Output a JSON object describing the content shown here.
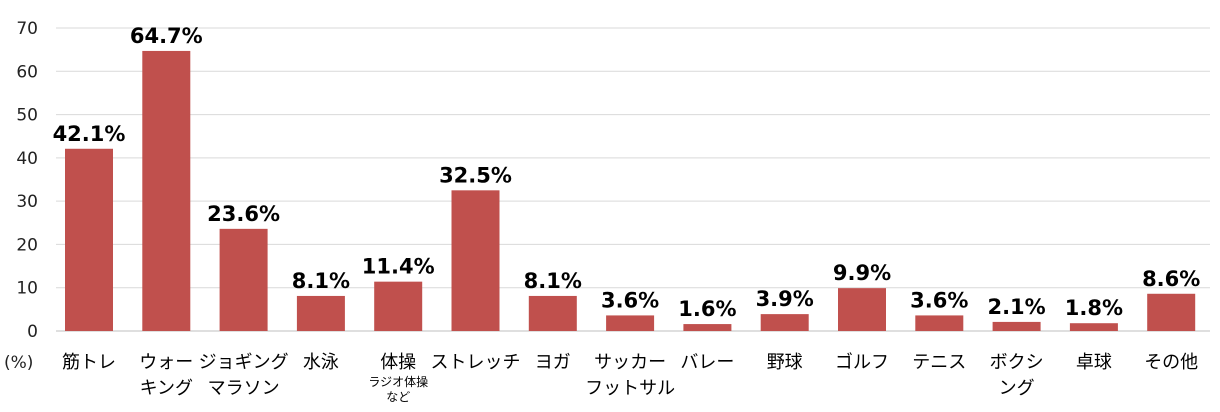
{
  "chart_data": {
    "type": "bar",
    "ylabel": "(%)",
    "ylim": [
      0,
      70
    ],
    "yticks": [
      0,
      10,
      20,
      30,
      40,
      50,
      60,
      70
    ],
    "grid": true,
    "bar_color": "#c0504d",
    "categories": [
      {
        "lines": [
          "筋トレ"
        ],
        "sub": []
      },
      {
        "lines": [
          "ウォー",
          "キング"
        ],
        "sub": []
      },
      {
        "lines": [
          "ジョギング",
          "マラソン"
        ],
        "sub": []
      },
      {
        "lines": [
          "水泳"
        ],
        "sub": []
      },
      {
        "lines": [
          "体操"
        ],
        "sub": [
          "ラジオ体操",
          "など"
        ]
      },
      {
        "lines": [
          "ストレッチ"
        ],
        "sub": []
      },
      {
        "lines": [
          "ヨガ"
        ],
        "sub": []
      },
      {
        "lines": [
          "サッカー",
          "フットサル"
        ],
        "sub": []
      },
      {
        "lines": [
          "バレー"
        ],
        "sub": []
      },
      {
        "lines": [
          "野球"
        ],
        "sub": []
      },
      {
        "lines": [
          "ゴルフ"
        ],
        "sub": []
      },
      {
        "lines": [
          "テニス"
        ],
        "sub": []
      },
      {
        "lines": [
          "ボクシ",
          "ング"
        ],
        "sub": []
      },
      {
        "lines": [
          "卓球"
        ],
        "sub": []
      },
      {
        "lines": [
          "その他"
        ],
        "sub": []
      }
    ],
    "values": [
      42.1,
      64.7,
      23.6,
      8.1,
      11.4,
      32.5,
      8.1,
      3.6,
      1.6,
      3.9,
      9.9,
      3.6,
      2.1,
      1.8,
      8.6
    ],
    "data_labels": [
      "42.1%",
      "64.7%",
      "23.6%",
      "8.1%",
      "11.4%",
      "32.5%",
      "8.1%",
      "3.6%",
      "1.6%",
      "3.9%",
      "9.9%",
      "3.6%",
      "2.1%",
      "1.8%",
      "8.6%"
    ]
  }
}
